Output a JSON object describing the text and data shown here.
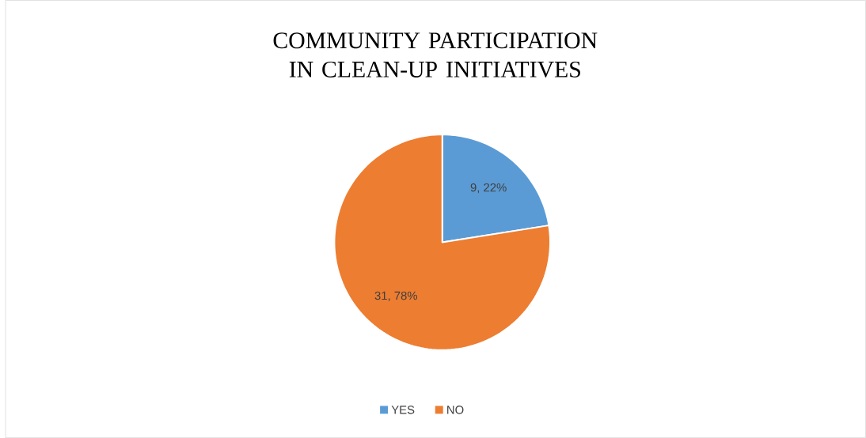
{
  "chart_data": {
    "type": "pie",
    "title": "COMMUNITY PARTICIPATION IN CLEAN-UP INITIATIVES",
    "categories": [
      "YES",
      "NO"
    ],
    "values": [
      9,
      31
    ],
    "colors": [
      "#5b9bd5",
      "#ed7d31"
    ],
    "value_labels": [
      "9, 22%",
      "31, 78%"
    ],
    "legend": "bottom"
  }
}
